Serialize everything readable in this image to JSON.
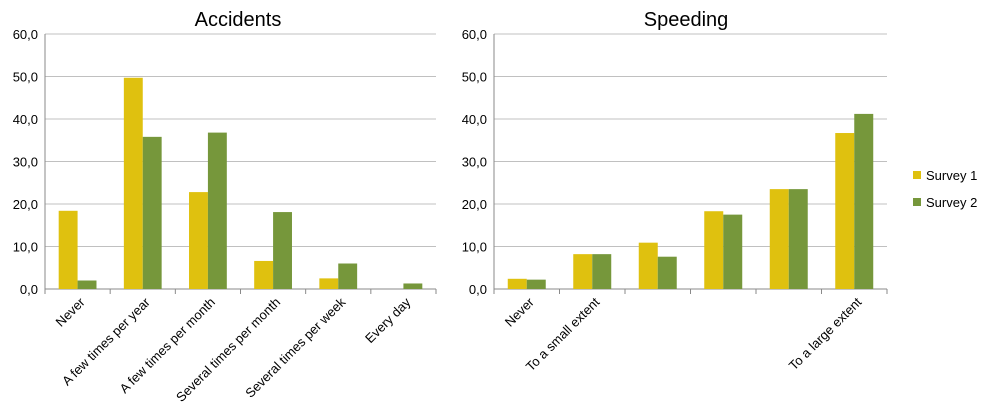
{
  "colors": {
    "survey1": "#dfc10f",
    "survey2": "#76973b",
    "grid": "#c0c0c0",
    "axis": "#8a8a8a"
  },
  "legend": {
    "items": [
      {
        "label": "Survey 1",
        "color": "#dfc10f"
      },
      {
        "label": "Survey 2",
        "color": "#76973b"
      }
    ],
    "placement": "right"
  },
  "chart_data": [
    {
      "type": "bar",
      "title": "Accidents",
      "categories": [
        "Never",
        "A few times per year",
        "A few times per month",
        "Several times per month",
        "Several times per week",
        "Every day"
      ],
      "series": [
        {
          "name": "Survey 1",
          "values": [
            18.4,
            49.7,
            22.8,
            6.6,
            2.5,
            0.0
          ]
        },
        {
          "name": "Survey 2",
          "values": [
            2.0,
            35.8,
            36.8,
            18.1,
            6.0,
            1.3
          ]
        }
      ],
      "ylim": [
        0,
        60
      ],
      "yticks": [
        "0,0",
        "10,0",
        "20,0",
        "30,0",
        "40,0",
        "50,0",
        "60,0"
      ],
      "grid": true
    },
    {
      "type": "bar",
      "title": "Speeding",
      "categories": [
        "Never",
        "To a small extent",
        "",
        "",
        "",
        "To a large extent"
      ],
      "series": [
        {
          "name": "Survey 1",
          "values": [
            2.4,
            8.2,
            10.9,
            18.3,
            23.5,
            36.7
          ]
        },
        {
          "name": "Survey 2",
          "values": [
            2.2,
            8.2,
            7.6,
            17.5,
            23.5,
            41.2
          ]
        }
      ],
      "ylim": [
        0,
        60
      ],
      "yticks": [
        "0,0",
        "10,0",
        "20,0",
        "30,0",
        "40,0",
        "50,0",
        "60,0"
      ],
      "grid": true
    }
  ]
}
